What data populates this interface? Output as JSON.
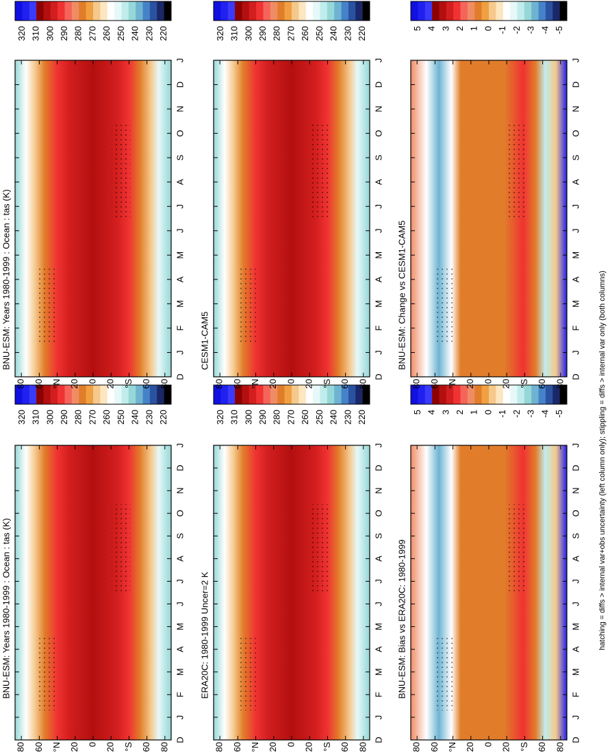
{
  "chart_data": [
    {
      "type": "contour",
      "title": "BNU-ESM: Years 1980-1999 : Ocean : tas (K)",
      "categories": [
        "D",
        "J",
        "F",
        "M",
        "A",
        "M",
        "J",
        "J",
        "A",
        "S",
        "O",
        "N",
        "D",
        "J"
      ],
      "ylim": [
        87,
        -87
      ],
      "yticks": [
        80,
        60,
        {
          "value": 40,
          "label": "°N"
        },
        20,
        0,
        {
          "value": -20,
          "label": "20"
        },
        {
          "value": -40,
          "label": "°S"
        },
        {
          "value": -60,
          "label": "60"
        },
        {
          "value": -80,
          "label": "80"
        }
      ],
      "colorbar": {
        "colors": [
          "#1010e0",
          "#2020f0",
          "#3a3af8",
          "#8b0000",
          "#b40f0f",
          "#d21e1e",
          "#f03232",
          "#f5645a",
          "#f08c64",
          "#e17d2a",
          "#f0a040",
          "#f5c88c",
          "#fde6c0",
          "#ffffff",
          "#e6f8f8",
          "#c0ecec",
          "#96d7d7",
          "#6eb4d2",
          "#4682c8",
          "#2a52a0",
          "#1a2868",
          "#000000"
        ],
        "ticks": [
          320,
          310,
          300,
          290,
          280,
          270,
          260,
          250,
          240,
          230,
          220
        ]
      }
    },
    {
      "type": "contour",
      "title": "BNU-ESM: Years 1980-1999 : Ocean : tas (K)",
      "categories": [
        "D",
        "J",
        "F",
        "M",
        "A",
        "M",
        "J",
        "J",
        "A",
        "S",
        "O",
        "N",
        "D",
        "J"
      ],
      "ylim": [
        87,
        -87
      ],
      "yticks": [
        80,
        60,
        {
          "value": 40,
          "label": "°N"
        },
        20,
        0,
        {
          "value": -20,
          "label": "20"
        },
        {
          "value": -40,
          "label": "°S"
        },
        {
          "value": -60,
          "label": "60"
        },
        {
          "value": -80,
          "label": "80"
        }
      ],
      "colorbar": {
        "colors": [
          "#1010e0",
          "#2020f0",
          "#3a3af8",
          "#8b0000",
          "#b40f0f",
          "#d21e1e",
          "#f03232",
          "#f5645a",
          "#f08c64",
          "#e17d2a",
          "#f0a040",
          "#f5c88c",
          "#fde6c0",
          "#ffffff",
          "#e6f8f8",
          "#c0ecec",
          "#96d7d7",
          "#6eb4d2",
          "#4682c8",
          "#2a52a0",
          "#1a2868",
          "#000000"
        ],
        "ticks": [
          320,
          310,
          300,
          290,
          280,
          270,
          260,
          250,
          240,
          230,
          220
        ]
      }
    },
    {
      "type": "contour",
      "title": "ERA20C: 1980-1999 Uncer=2 K",
      "categories": [
        "D",
        "J",
        "F",
        "M",
        "A",
        "M",
        "J",
        "J",
        "A",
        "S",
        "O",
        "N",
        "D",
        "J"
      ],
      "ylim": [
        87,
        -87
      ],
      "yticks": [
        80,
        60,
        {
          "value": 40,
          "label": "°N"
        },
        20,
        0,
        {
          "value": -20,
          "label": "20"
        },
        {
          "value": -40,
          "label": "°S"
        },
        {
          "value": -60,
          "label": "60"
        },
        {
          "value": -80,
          "label": "80"
        }
      ],
      "colorbar": {
        "colors": [
          "#1010e0",
          "#2020f0",
          "#3a3af8",
          "#8b0000",
          "#b40f0f",
          "#d21e1e",
          "#f03232",
          "#f5645a",
          "#f08c64",
          "#e17d2a",
          "#f0a040",
          "#f5c88c",
          "#fde6c0",
          "#ffffff",
          "#e6f8f8",
          "#c0ecec",
          "#96d7d7",
          "#6eb4d2",
          "#4682c8",
          "#2a52a0",
          "#1a2868",
          "#000000"
        ],
        "ticks": [
          320,
          310,
          300,
          290,
          280,
          270,
          260,
          250,
          240,
          230,
          220
        ]
      }
    },
    {
      "type": "contour",
      "title": "CESM1-CAM5",
      "categories": [
        "D",
        "J",
        "F",
        "M",
        "A",
        "M",
        "J",
        "J",
        "A",
        "S",
        "O",
        "N",
        "D",
        "J"
      ],
      "ylim": [
        87,
        -87
      ],
      "yticks": [
        80,
        60,
        {
          "value": 40,
          "label": "°N"
        },
        20,
        0,
        {
          "value": -20,
          "label": "20"
        },
        {
          "value": -40,
          "label": "°S"
        },
        {
          "value": -60,
          "label": "60"
        },
        {
          "value": -80,
          "label": "80"
        }
      ],
      "colorbar": {
        "colors": [
          "#1010e0",
          "#2020f0",
          "#3a3af8",
          "#8b0000",
          "#b40f0f",
          "#d21e1e",
          "#f03232",
          "#f5645a",
          "#f08c64",
          "#e17d2a",
          "#f0a040",
          "#f5c88c",
          "#fde6c0",
          "#ffffff",
          "#e6f8f8",
          "#c0ecec",
          "#96d7d7",
          "#6eb4d2",
          "#4682c8",
          "#2a52a0",
          "#1a2868",
          "#000000"
        ],
        "ticks": [
          320,
          310,
          300,
          290,
          280,
          270,
          260,
          250,
          240,
          230,
          220
        ]
      }
    },
    {
      "type": "contour",
      "title": "BNU-ESM: Bias vs ERA20C: 1980-1999",
      "categories": [
        "D",
        "J",
        "F",
        "M",
        "A",
        "M",
        "J",
        "J",
        "A",
        "S",
        "O",
        "N",
        "D",
        "J"
      ],
      "ylim": [
        87,
        -87
      ],
      "yticks": [
        80,
        60,
        {
          "value": 40,
          "label": "°N"
        },
        20,
        0,
        {
          "value": -20,
          "label": "20"
        },
        {
          "value": -40,
          "label": "°S"
        },
        {
          "value": -60,
          "label": "60"
        },
        {
          "value": -80,
          "label": "80"
        }
      ],
      "colorbar": {
        "colors": [
          "#1010e0",
          "#2020f0",
          "#3a3af8",
          "#8b0000",
          "#b40f0f",
          "#d21e1e",
          "#f03232",
          "#f5645a",
          "#f08c64",
          "#e17d2a",
          "#f0a040",
          "#f5c88c",
          "#fde6c0",
          "#ffffff",
          "#e6f8f8",
          "#c0ecec",
          "#96d7d7",
          "#6eb4d2",
          "#4682c8",
          "#2a52a0",
          "#1a2868",
          "#000000"
        ],
        "ticks": [
          5,
          4,
          3,
          2,
          1,
          0,
          -1,
          -2,
          -3,
          -4,
          -5
        ]
      }
    },
    {
      "type": "contour",
      "title": "BNU-ESM: Change vs CESM1-CAM5",
      "categories": [
        "D",
        "J",
        "F",
        "M",
        "A",
        "M",
        "J",
        "J",
        "A",
        "S",
        "O",
        "N",
        "D",
        "J"
      ],
      "ylim": [
        87,
        -87
      ],
      "yticks": [
        80,
        60,
        {
          "value": 40,
          "label": "°N"
        },
        20,
        0,
        {
          "value": -20,
          "label": "20"
        },
        {
          "value": -40,
          "label": "°S"
        },
        {
          "value": -60,
          "label": "60"
        },
        {
          "value": -80,
          "label": "80"
        }
      ],
      "colorbar": {
        "colors": [
          "#1010e0",
          "#2020f0",
          "#3a3af8",
          "#8b0000",
          "#b40f0f",
          "#d21e1e",
          "#f03232",
          "#f5645a",
          "#f08c64",
          "#e17d2a",
          "#f0a040",
          "#f5c88c",
          "#fde6c0",
          "#ffffff",
          "#e6f8f8",
          "#c0ecec",
          "#96d7d7",
          "#6eb4d2",
          "#4682c8",
          "#2a52a0",
          "#1a2868",
          "#000000"
        ],
        "ticks": [
          5,
          4,
          3,
          2,
          1,
          0,
          -1,
          -2,
          -3,
          -4,
          -5
        ]
      }
    }
  ],
  "footnote": "hatching = diffs > internal var+obs uncertainty (left column only); stippling = diffs > internal var only (both columns)"
}
